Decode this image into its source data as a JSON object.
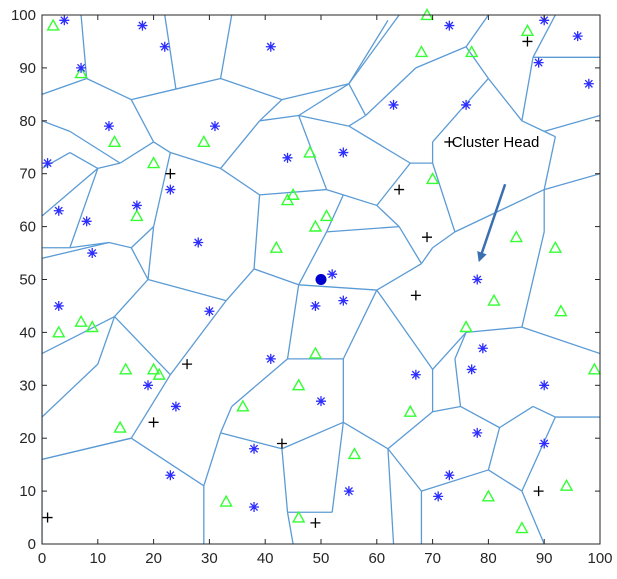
{
  "chart_data": {
    "type": "scatter",
    "title": "",
    "xlabel": "",
    "ylabel": "",
    "xlim": [
      0,
      100
    ],
    "ylim": [
      0,
      100
    ],
    "xticks": [
      "0",
      "10",
      "20",
      "30",
      "40",
      "50",
      "60",
      "70",
      "80",
      "90",
      "100"
    ],
    "yticks": [
      "0",
      "10",
      "20",
      "30",
      "40",
      "50",
      "60",
      "70",
      "80",
      "90",
      "100"
    ],
    "grid": false,
    "colors": {
      "voronoi_edges": "#5b9bd5",
      "green_triangles": "#33ff33",
      "blue_asterisks": "#2d2dff",
      "black_plus": "#000000",
      "base_station": "#0000cc",
      "arrow": "#3a6fb0"
    },
    "annotation": {
      "text": "Cluster Head",
      "text_at": [
        72,
        76
      ],
      "arrow_from": [
        83,
        68
      ],
      "arrow_to": [
        78.5,
        54
      ]
    },
    "base_station": [
      50,
      50
    ],
    "triangles": [
      [
        2,
        98
      ],
      [
        7,
        89
      ],
      [
        13,
        76
      ],
      [
        20,
        72
      ],
      [
        29,
        76
      ],
      [
        44,
        65
      ],
      [
        45,
        66
      ],
      [
        48,
        74
      ],
      [
        51,
        62
      ],
      [
        68,
        93
      ],
      [
        69,
        100
      ],
      [
        77,
        93
      ],
      [
        87,
        97
      ],
      [
        70,
        69
      ],
      [
        85,
        58
      ],
      [
        92,
        56
      ],
      [
        42,
        56
      ],
      [
        49,
        60
      ],
      [
        81,
        46
      ],
      [
        93,
        44
      ],
      [
        99,
        33
      ],
      [
        76,
        41
      ],
      [
        66,
        25
      ],
      [
        46,
        30
      ],
      [
        49,
        36
      ],
      [
        20,
        33
      ],
      [
        21,
        32
      ],
      [
        15,
        33
      ],
      [
        7,
        42
      ],
      [
        9,
        41
      ],
      [
        3,
        40
      ],
      [
        14,
        22
      ],
      [
        36,
        26
      ],
      [
        56,
        17
      ],
      [
        33,
        8
      ],
      [
        46,
        5
      ],
      [
        80,
        9
      ],
      [
        86,
        3
      ],
      [
        94,
        11
      ],
      [
        17,
        62
      ]
    ],
    "asterisks": [
      [
        4,
        99
      ],
      [
        18,
        98
      ],
      [
        22,
        94
      ],
      [
        7,
        90
      ],
      [
        12,
        79
      ],
      [
        31,
        79
      ],
      [
        41,
        94
      ],
      [
        54,
        74
      ],
      [
        63,
        83
      ],
      [
        76,
        83
      ],
      [
        73,
        98
      ],
      [
        90,
        99
      ],
      [
        96,
        96
      ],
      [
        89,
        91
      ],
      [
        98,
        87
      ],
      [
        1,
        72
      ],
      [
        23,
        67
      ],
      [
        17,
        64
      ],
      [
        3,
        63
      ],
      [
        8,
        61
      ],
      [
        9,
        55
      ],
      [
        28,
        57
      ],
      [
        44,
        73
      ],
      [
        52,
        51
      ],
      [
        54,
        46
      ],
      [
        49,
        45
      ],
      [
        78,
        50
      ],
      [
        3,
        45
      ],
      [
        30,
        44
      ],
      [
        79,
        37
      ],
      [
        67,
        32
      ],
      [
        77,
        33
      ],
      [
        90,
        30
      ],
      [
        19,
        30
      ],
      [
        24,
        26
      ],
      [
        41,
        35
      ],
      [
        50,
        27
      ],
      [
        38,
        18
      ],
      [
        23,
        13
      ],
      [
        55,
        10
      ],
      [
        38,
        7
      ],
      [
        73,
        13
      ],
      [
        71,
        9
      ],
      [
        78,
        21
      ],
      [
        90,
        19
      ]
    ],
    "plus_markers": [
      [
        23,
        70
      ],
      [
        64,
        67
      ],
      [
        69,
        58
      ],
      [
        67,
        47
      ],
      [
        73,
        76
      ],
      [
        87,
        95
      ],
      [
        26,
        34
      ],
      [
        20,
        23
      ],
      [
        43,
        19
      ],
      [
        1,
        5
      ],
      [
        49,
        4
      ],
      [
        89,
        10
      ]
    ],
    "voronoi_edges": [
      [
        [
          0,
          85
        ],
        [
          8,
          88
        ]
      ],
      [
        [
          8,
          88
        ],
        [
          16,
          84
        ]
      ],
      [
        [
          16,
          84
        ],
        [
          20,
          76
        ]
      ],
      [
        [
          20,
          76
        ],
        [
          14,
          72
        ]
      ],
      [
        [
          14,
          72
        ],
        [
          5,
          78
        ]
      ],
      [
        [
          5,
          78
        ],
        [
          0,
          80
        ]
      ],
      [
        [
          8,
          88
        ],
        [
          7,
          100
        ]
      ],
      [
        [
          16,
          84
        ],
        [
          24,
          86
        ]
      ],
      [
        [
          24,
          86
        ],
        [
          32,
          88
        ]
      ],
      [
        [
          32,
          88
        ],
        [
          34,
          100
        ]
      ],
      [
        [
          24,
          86
        ],
        [
          22,
          100
        ]
      ],
      [
        [
          32,
          88
        ],
        [
          43,
          84
        ]
      ],
      [
        [
          43,
          84
        ],
        [
          55,
          87
        ]
      ],
      [
        [
          55,
          87
        ],
        [
          62,
          99
        ]
      ],
      [
        [
          55,
          87
        ],
        [
          64,
          100
        ]
      ],
      [
        [
          20,
          76
        ],
        [
          23,
          74
        ]
      ],
      [
        [
          23,
          74
        ],
        [
          32,
          71
        ]
      ],
      [
        [
          32,
          71
        ],
        [
          39,
          80
        ]
      ],
      [
        [
          39,
          80
        ],
        [
          43,
          84
        ]
      ],
      [
        [
          39,
          80
        ],
        [
          46,
          81
        ]
      ],
      [
        [
          46,
          81
        ],
        [
          51,
          67
        ]
      ],
      [
        [
          51,
          67
        ],
        [
          54,
          66
        ]
      ],
      [
        [
          54,
          66
        ],
        [
          60,
          64
        ]
      ],
      [
        [
          60,
          64
        ],
        [
          66,
          72
        ]
      ],
      [
        [
          46,
          81
        ],
        [
          55,
          87
        ]
      ],
      [
        [
          46,
          81
        ],
        [
          55,
          79
        ]
      ],
      [
        [
          55,
          79
        ],
        [
          66,
          72
        ]
      ],
      [
        [
          66,
          72
        ],
        [
          70,
          72
        ]
      ],
      [
        [
          55,
          79
        ],
        [
          58,
          81
        ]
      ],
      [
        [
          58,
          81
        ],
        [
          55,
          87
        ]
      ],
      [
        [
          58,
          81
        ],
        [
          67,
          90
        ]
      ],
      [
        [
          67,
          90
        ],
        [
          76,
          94
        ]
      ],
      [
        [
          76,
          94
        ],
        [
          80,
          100
        ]
      ],
      [
        [
          76,
          94
        ],
        [
          80,
          88
        ]
      ],
      [
        [
          80,
          88
        ],
        [
          86,
          80
        ]
      ],
      [
        [
          86,
          80
        ],
        [
          90,
          78
        ]
      ],
      [
        [
          90,
          78
        ],
        [
          100,
          81
        ]
      ],
      [
        [
          86,
          80
        ],
        [
          88,
          92
        ]
      ],
      [
        [
          88,
          92
        ],
        [
          92,
          100
        ]
      ],
      [
        [
          88,
          92
        ],
        [
          100,
          92
        ]
      ],
      [
        [
          80,
          88
        ],
        [
          70,
          76
        ]
      ],
      [
        [
          70,
          76
        ],
        [
          70,
          72
        ]
      ],
      [
        [
          0,
          71
        ],
        [
          5,
          74
        ]
      ],
      [
        [
          5,
          74
        ],
        [
          10,
          71
        ]
      ],
      [
        [
          10,
          71
        ],
        [
          14,
          72
        ]
      ],
      [
        [
          10,
          71
        ],
        [
          0,
          62
        ]
      ],
      [
        [
          10,
          71
        ],
        [
          5,
          56
        ]
      ],
      [
        [
          5,
          56
        ],
        [
          0,
          56
        ]
      ],
      [
        [
          5,
          56
        ],
        [
          12,
          57
        ]
      ],
      [
        [
          12,
          57
        ],
        [
          16,
          56
        ]
      ],
      [
        [
          16,
          56
        ],
        [
          20,
          60
        ]
      ],
      [
        [
          20,
          60
        ],
        [
          23,
          74
        ]
      ],
      [
        [
          20,
          60
        ],
        [
          19,
          50
        ]
      ],
      [
        [
          19,
          50
        ],
        [
          33,
          46
        ]
      ],
      [
        [
          33,
          46
        ],
        [
          38,
          52
        ]
      ],
      [
        [
          38,
          52
        ],
        [
          39,
          66
        ]
      ],
      [
        [
          39,
          66
        ],
        [
          32,
          71
        ]
      ],
      [
        [
          39,
          66
        ],
        [
          51,
          67
        ]
      ],
      [
        [
          38,
          52
        ],
        [
          46,
          49
        ]
      ],
      [
        [
          46,
          49
        ],
        [
          51,
          59
        ]
      ],
      [
        [
          51,
          59
        ],
        [
          54,
          66
        ]
      ],
      [
        [
          51,
          59
        ],
        [
          64,
          60
        ]
      ],
      [
        [
          64,
          60
        ],
        [
          60,
          64
        ]
      ],
      [
        [
          64,
          60
        ],
        [
          68,
          53
        ]
      ],
      [
        [
          68,
          53
        ],
        [
          70,
          56
        ]
      ],
      [
        [
          70,
          56
        ],
        [
          74,
          59
        ]
      ],
      [
        [
          74,
          59
        ],
        [
          90,
          67
        ]
      ],
      [
        [
          90,
          67
        ],
        [
          100,
          70
        ]
      ],
      [
        [
          90,
          67
        ],
        [
          92,
          77
        ]
      ],
      [
        [
          92,
          77
        ],
        [
          90,
          78
        ]
      ],
      [
        [
          70,
          72
        ],
        [
          74,
          59
        ]
      ],
      [
        [
          12,
          57
        ],
        [
          0,
          54
        ]
      ],
      [
        [
          16,
          56
        ],
        [
          19,
          50
        ]
      ],
      [
        [
          0,
          54
        ],
        [
          0,
          0
        ]
      ],
      [
        [
          0,
          36
        ],
        [
          13,
          43
        ]
      ],
      [
        [
          13,
          43
        ],
        [
          19,
          50
        ]
      ],
      [
        [
          13,
          43
        ],
        [
          10,
          34
        ]
      ],
      [
        [
          10,
          34
        ],
        [
          0,
          24
        ]
      ],
      [
        [
          13,
          43
        ],
        [
          23,
          32
        ]
      ],
      [
        [
          23,
          32
        ],
        [
          33,
          46
        ]
      ],
      [
        [
          23,
          32
        ],
        [
          16,
          20
        ]
      ],
      [
        [
          16,
          20
        ],
        [
          0,
          16
        ]
      ],
      [
        [
          16,
          20
        ],
        [
          29,
          11
        ]
      ],
      [
        [
          29,
          11
        ],
        [
          29,
          0
        ]
      ],
      [
        [
          29,
          11
        ],
        [
          32,
          21
        ]
      ],
      [
        [
          32,
          21
        ],
        [
          34,
          26
        ]
      ],
      [
        [
          34,
          26
        ],
        [
          44,
          35
        ]
      ],
      [
        [
          44,
          35
        ],
        [
          46,
          49
        ]
      ],
      [
        [
          44,
          35
        ],
        [
          54,
          35
        ]
      ],
      [
        [
          54,
          35
        ],
        [
          60,
          48
        ]
      ],
      [
        [
          60,
          48
        ],
        [
          68,
          53
        ]
      ],
      [
        [
          60,
          48
        ],
        [
          46,
          49
        ]
      ],
      [
        [
          54,
          35
        ],
        [
          54,
          23
        ]
      ],
      [
        [
          54,
          23
        ],
        [
          43,
          18
        ]
      ],
      [
        [
          43,
          18
        ],
        [
          32,
          21
        ]
      ],
      [
        [
          43,
          18
        ],
        [
          44,
          6
        ]
      ],
      [
        [
          44,
          6
        ],
        [
          45,
          0
        ]
      ],
      [
        [
          54,
          23
        ],
        [
          62,
          18
        ]
      ],
      [
        [
          62,
          18
        ],
        [
          63,
          0
        ]
      ],
      [
        [
          62,
          18
        ],
        [
          70,
          25
        ]
      ],
      [
        [
          70,
          25
        ],
        [
          70,
          33
        ]
      ],
      [
        [
          70,
          33
        ],
        [
          60,
          48
        ]
      ],
      [
        [
          70,
          33
        ],
        [
          76,
          40
        ]
      ],
      [
        [
          76,
          40
        ],
        [
          86,
          41
        ]
      ],
      [
        [
          86,
          41
        ],
        [
          100,
          36
        ]
      ],
      [
        [
          86,
          41
        ],
        [
          90,
          59
        ]
      ],
      [
        [
          90,
          59
        ],
        [
          90,
          67
        ]
      ],
      [
        [
          76,
          40
        ],
        [
          74,
          35
        ]
      ],
      [
        [
          74,
          35
        ],
        [
          75,
          26
        ]
      ],
      [
        [
          75,
          26
        ],
        [
          70,
          25
        ]
      ],
      [
        [
          75,
          26
        ],
        [
          82,
          22
        ]
      ],
      [
        [
          82,
          22
        ],
        [
          88,
          26
        ]
      ],
      [
        [
          88,
          26
        ],
        [
          92,
          24
        ]
      ],
      [
        [
          92,
          24
        ],
        [
          100,
          24
        ]
      ],
      [
        [
          82,
          22
        ],
        [
          80,
          14
        ]
      ],
      [
        [
          80,
          14
        ],
        [
          68,
          10
        ]
      ],
      [
        [
          68,
          10
        ],
        [
          62,
          18
        ]
      ],
      [
        [
          80,
          14
        ],
        [
          86,
          10
        ]
      ],
      [
        [
          86,
          10
        ],
        [
          90,
          0
        ]
      ],
      [
        [
          86,
          10
        ],
        [
          92,
          24
        ]
      ],
      [
        [
          68,
          10
        ],
        [
          68,
          0
        ]
      ],
      [
        [
          16,
          20
        ],
        [
          0,
          16
        ]
      ],
      [
        [
          44,
          6
        ],
        [
          52,
          6
        ]
      ],
      [
        [
          52,
          6
        ],
        [
          54,
          23
        ]
      ]
    ]
  }
}
